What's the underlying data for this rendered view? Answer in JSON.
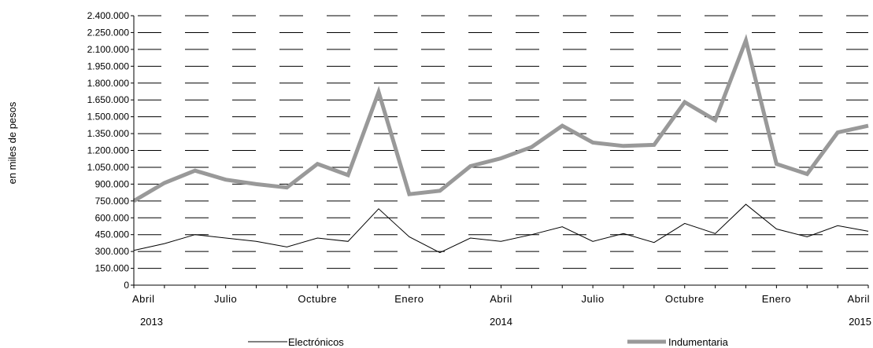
{
  "chart_data": {
    "type": "line",
    "ylabel": "en miles de pesos",
    "ylim": [
      0,
      2400000
    ],
    "yticks": [
      0,
      150000,
      300000,
      450000,
      600000,
      750000,
      900000,
      1050000,
      1200000,
      1350000,
      1500000,
      1650000,
      1800000,
      1950000,
      2100000,
      2250000,
      2400000
    ],
    "ytick_labels": [
      "0",
      "150.000",
      "300.000",
      "450.000",
      "600.000",
      "750.000",
      "900.000",
      "1.050.000",
      "1.200.000",
      "1.350.000",
      "1.500.000",
      "1.650.000",
      "1.800.000",
      "1.950.000",
      "2.100.000",
      "2.250.000",
      "2.400.000"
    ],
    "x": [
      "2013-04",
      "2013-05",
      "2013-06",
      "2013-07",
      "2013-08",
      "2013-09",
      "2013-10",
      "2013-11",
      "2013-12",
      "2014-01",
      "2014-02",
      "2014-03",
      "2014-04",
      "2014-05",
      "2014-06",
      "2014-07",
      "2014-08",
      "2014-09",
      "2014-10",
      "2014-11",
      "2014-12",
      "2015-01",
      "2015-02",
      "2015-03",
      "2015-04"
    ],
    "month_tick_labels": [
      {
        "x": "2013-04",
        "label": "Abril"
      },
      {
        "x": "2013-07",
        "label": "Julio"
      },
      {
        "x": "2013-10",
        "label": "Octubre"
      },
      {
        "x": "2014-01",
        "label": "Enero"
      },
      {
        "x": "2014-04",
        "label": "Abril"
      },
      {
        "x": "2014-07",
        "label": "Julio"
      },
      {
        "x": "2014-10",
        "label": "Octubre"
      },
      {
        "x": "2015-01",
        "label": "Enero"
      },
      {
        "x": "2015-04",
        "label": "Abril"
      }
    ],
    "year_tick_labels": [
      {
        "x": "2013-04",
        "label": "2013"
      },
      {
        "x": "2014-04",
        "label": "2014"
      },
      {
        "x": "2015-04",
        "label": "2015"
      }
    ],
    "grid": true,
    "legend_position": "bottom",
    "series": [
      {
        "name": "Electrónicos",
        "color": "#000000",
        "values": [
          310000,
          370000,
          450000,
          420000,
          390000,
          340000,
          420000,
          390000,
          680000,
          430000,
          290000,
          420000,
          390000,
          450000,
          520000,
          390000,
          460000,
          380000,
          550000,
          460000,
          720000,
          500000,
          430000,
          530000,
          480000
        ]
      },
      {
        "name": "Indumentaria",
        "color": "#999999",
        "values": [
          750000,
          910000,
          1020000,
          940000,
          900000,
          870000,
          1080000,
          980000,
          1720000,
          810000,
          840000,
          1060000,
          1130000,
          1230000,
          1420000,
          1270000,
          1240000,
          1250000,
          1630000,
          1470000,
          2180000,
          1080000,
          990000,
          1360000,
          1420000
        ]
      }
    ]
  }
}
